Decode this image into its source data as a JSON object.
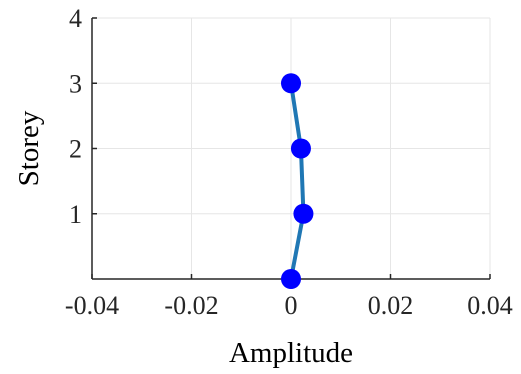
{
  "chart_data": {
    "type": "line",
    "title": "",
    "xlabel": "Amplitude",
    "ylabel": "Storey",
    "xlim": [
      -0.04,
      0.04
    ],
    "ylim": [
      0,
      4
    ],
    "xticks": [
      -0.04,
      -0.02,
      0,
      0.02,
      0.04
    ],
    "xtick_labels": [
      "-0.04",
      "-0.02",
      "0",
      "0.02",
      "0.04"
    ],
    "yticks": [
      1,
      2,
      3,
      4
    ],
    "ytick_labels": [
      "1",
      "2",
      "3",
      "4"
    ],
    "grid": true,
    "series": [
      {
        "x": [
          0,
          0.0025,
          0.002,
          0
        ],
        "y": [
          0,
          1,
          2,
          3
        ],
        "line_color": "#1f77b4",
        "marker_color": "#0000ff"
      }
    ]
  }
}
